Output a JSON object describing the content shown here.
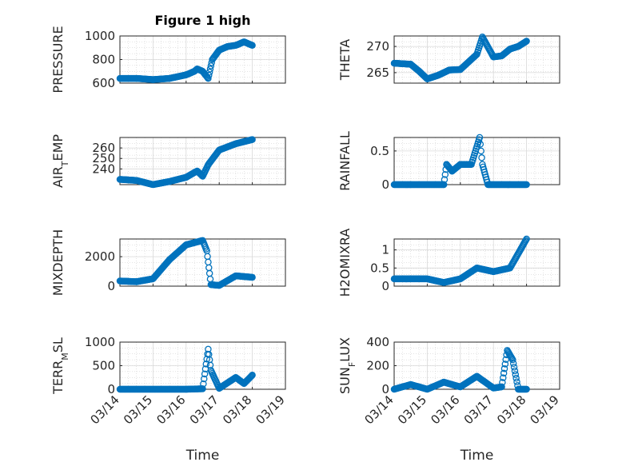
{
  "chart_data": [
    {
      "type": "scatter",
      "title": "Figure 1 high",
      "ylabel": "PRESSURE",
      "ylim": [
        600,
        1000
      ],
      "yticks": [
        "600",
        "800",
        "1000"
      ],
      "x": [
        "03/14 00:00",
        "03/14 12:00",
        "03/15 00:00",
        "03/15 12:00",
        "03/16 00:00",
        "03/16 06:00",
        "03/16 08:00",
        "03/16 12:00",
        "03/16 16:00",
        "03/16 19:00",
        "03/17 00:00",
        "03/17 06:00",
        "03/17 12:00",
        "03/17 18:00",
        "03/18 00:00"
      ],
      "values": [
        640,
        640,
        630,
        640,
        670,
        700,
        720,
        700,
        640,
        800,
        880,
        910,
        920,
        950,
        920
      ],
      "grid": true,
      "minor_grid": true
    },
    {
      "type": "scatter",
      "ylabel": "THETA",
      "ylim": [
        263,
        272
      ],
      "yticks": [
        "265",
        "270"
      ],
      "x": [
        "03/14 00:00",
        "03/14 12:00",
        "03/14 18:00",
        "03/15 00:00",
        "03/15 08:00",
        "03/15 16:00",
        "03/16 00:00",
        "03/16 12:00",
        "03/16 16:00",
        "03/17 00:00",
        "03/17 06:00",
        "03/17 12:00",
        "03/17 18:00",
        "03/18 00:00"
      ],
      "values": [
        266.8,
        266.6,
        265.3,
        263.8,
        264.5,
        265.5,
        265.6,
        268.5,
        271.8,
        268.0,
        268.2,
        269.5,
        270.0,
        271.0
      ],
      "grid": true,
      "minor_grid": true
    },
    {
      "type": "scatter",
      "ylabel": "AIR_TEMP",
      "ylabel_main": "AIR",
      "ylabel_sub": "T",
      "ylabel_tail": "EMP",
      "ylim": [
        225,
        270
      ],
      "yticks": [
        "240",
        "250",
        "260"
      ],
      "x": [
        "03/14 00:00",
        "03/14 12:00",
        "03/15 00:00",
        "03/15 12:00",
        "03/16 00:00",
        "03/16 08:00",
        "03/16 12:00",
        "03/16 16:00",
        "03/17 00:00",
        "03/17 12:00",
        "03/18 00:00"
      ],
      "values": [
        230,
        229,
        225,
        228,
        232,
        238,
        233,
        244,
        258,
        264,
        268
      ],
      "grid": true,
      "minor_grid": true
    },
    {
      "type": "scatter",
      "ylabel": "RAINFALL",
      "ylim": [
        0,
        0.7
      ],
      "yticks": [
        "0",
        "0.5"
      ],
      "x": [
        "03/14 00:00",
        "03/14 12:00",
        "03/15 00:00",
        "03/15 12:00",
        "03/15 14:00",
        "03/15 18:00",
        "03/16 00:00",
        "03/16 08:00",
        "03/16 14:00",
        "03/16 16:00",
        "03/16 20:00",
        "03/17 00:00",
        "03/17 12:00",
        "03/18 00:00"
      ],
      "values": [
        0,
        0,
        0,
        0,
        0.3,
        0.2,
        0.3,
        0.3,
        0.7,
        0.3,
        0,
        0,
        0,
        0
      ],
      "grid": true,
      "minor_grid": true
    },
    {
      "type": "scatter",
      "ylabel": "MIXDEPTH",
      "ylim": [
        0,
        3200
      ],
      "yticks": [
        "0",
        "2000"
      ],
      "x": [
        "03/14 00:00",
        "03/14 12:00",
        "03/15 00:00",
        "03/15 12:00",
        "03/16 00:00",
        "03/16 12:00",
        "03/16 15:00",
        "03/16 18:00",
        "03/17 00:00",
        "03/17 12:00",
        "03/18 00:00"
      ],
      "values": [
        350,
        300,
        500,
        1800,
        2800,
        3100,
        2400,
        100,
        50,
        700,
        600
      ],
      "grid": true,
      "minor_grid": true
    },
    {
      "type": "scatter",
      "ylabel": "H2OMIXRA",
      "ylim": [
        0,
        1.3
      ],
      "yticks": [
        "0",
        "0.5",
        "1"
      ],
      "x": [
        "03/14 00:00",
        "03/14 12:00",
        "03/15 00:00",
        "03/15 12:00",
        "03/16 00:00",
        "03/16 12:00",
        "03/17 00:00",
        "03/17 12:00",
        "03/18 00:00"
      ],
      "values": [
        0.2,
        0.2,
        0.2,
        0.1,
        0.2,
        0.5,
        0.4,
        0.5,
        1.3
      ],
      "grid": true,
      "minor_grid": true
    },
    {
      "type": "scatter",
      "ylabel": "TERRMSL",
      "ylabel_main": "TERR",
      "ylabel_sub": "M",
      "ylabel_tail": "SL",
      "xlabel": "Time",
      "ylim": [
        0,
        1000
      ],
      "yticks": [
        "0",
        "500",
        "1000"
      ],
      "xticks": [
        "03/14",
        "03/15",
        "03/16",
        "03/17",
        "03/18",
        "03/19"
      ],
      "x": [
        "03/14 00:00",
        "03/15 00:00",
        "03/16 00:00",
        "03/16 12:00",
        "03/16 16:00",
        "03/16 18:00",
        "03/17 00:00",
        "03/17 12:00",
        "03/17 18:00",
        "03/18 00:00"
      ],
      "values": [
        0,
        0,
        0,
        10,
        850,
        400,
        20,
        250,
        120,
        300
      ],
      "grid": true,
      "minor_grid": true
    },
    {
      "type": "scatter",
      "ylabel": "SUNFLUX",
      "ylabel_main": "SUN",
      "ylabel_sub": "F",
      "ylabel_tail": "LUX",
      "xlabel": "Time",
      "ylim": [
        0,
        400
      ],
      "yticks": [
        "0",
        "200",
        "400"
      ],
      "xticks": [
        "03/14",
        "03/15",
        "03/16",
        "03/17",
        "03/18",
        "03/19"
      ],
      "x": [
        "03/14 00:00",
        "03/14 12:00",
        "03/15 00:00",
        "03/15 12:00",
        "03/16 00:00",
        "03/16 12:00",
        "03/17 00:00",
        "03/17 06:00",
        "03/17 10:00",
        "03/17 14:00",
        "03/17 18:00",
        "03/18 00:00"
      ],
      "values": [
        0,
        40,
        0,
        60,
        20,
        110,
        10,
        20,
        330,
        250,
        0,
        0
      ],
      "grid": true,
      "minor_grid": true
    }
  ],
  "colors": {
    "marker": "#0072BD",
    "frame": "#262626",
    "grid": "#d9d9d9"
  }
}
